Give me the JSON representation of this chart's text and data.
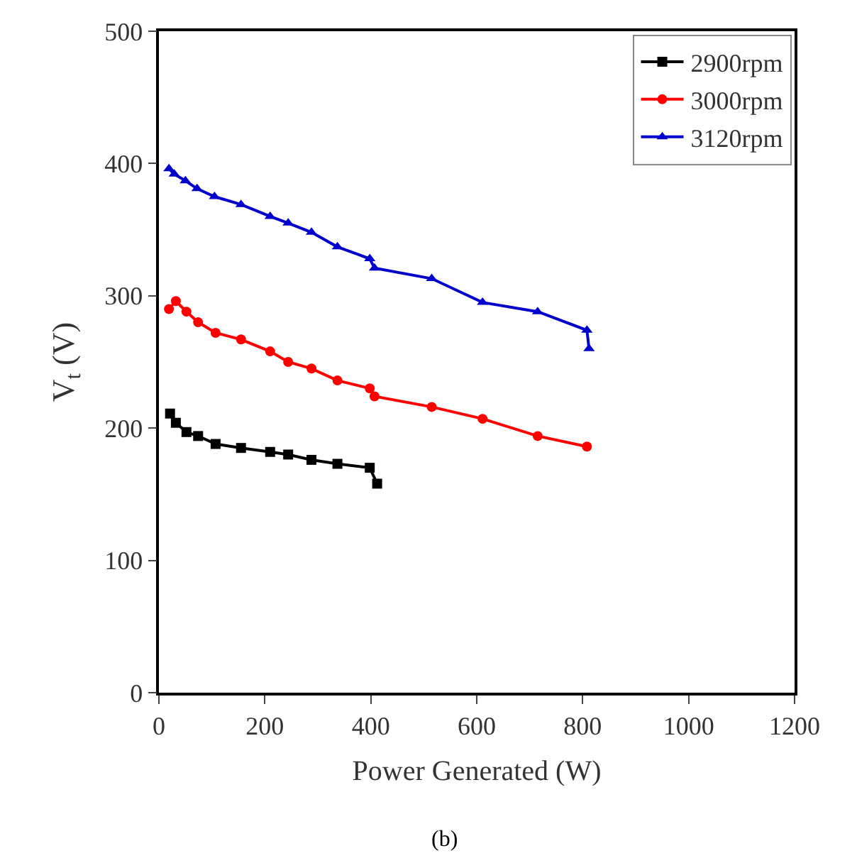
{
  "chart_data": {
    "type": "line",
    "xlabel": "Power Generated (W)",
    "ylabel": "V$_{t}$ (V)",
    "annotations": [
      "(b)"
    ],
    "xlim": [
      0,
      1200
    ],
    "xticks": [
      0,
      200,
      400,
      600,
      800,
      1000,
      1200
    ],
    "ylim": [
      0,
      500
    ],
    "yticks": [
      0,
      100,
      200,
      300,
      400,
      500
    ],
    "legend": "top right",
    "line_style": "solid",
    "series": [
      {
        "name": "2900rpm",
        "color": "#000000",
        "marker": "square",
        "x": [
          21,
          32,
          52,
          74,
          107,
          155,
          210,
          244,
          288,
          337,
          398,
          412
        ],
        "values": [
          211,
          204,
          197,
          194,
          188,
          185,
          182,
          180,
          176,
          173,
          170,
          158
        ]
      },
      {
        "name": "3000rpm",
        "color": "#ff0000",
        "marker": "circle",
        "x": [
          19,
          32,
          52,
          74,
          107,
          155,
          210,
          244,
          288,
          337,
          398,
          407,
          515,
          611,
          715,
          808
        ],
        "values": [
          290,
          296,
          288,
          280,
          272,
          267,
          258,
          250,
          245,
          236,
          230,
          224,
          216,
          207,
          194,
          186
        ]
      },
      {
        "name": "3120rpm",
        "color": "#0000cc",
        "marker": "triangle",
        "x": [
          19,
          29,
          50,
          72,
          105,
          155,
          210,
          244,
          288,
          337,
          398,
          407,
          515,
          611,
          715,
          808,
          812
        ],
        "values": [
          396,
          392,
          387,
          381,
          375,
          369,
          360,
          355,
          348,
          337,
          328,
          321,
          313,
          295,
          288,
          274,
          260
        ]
      }
    ]
  }
}
